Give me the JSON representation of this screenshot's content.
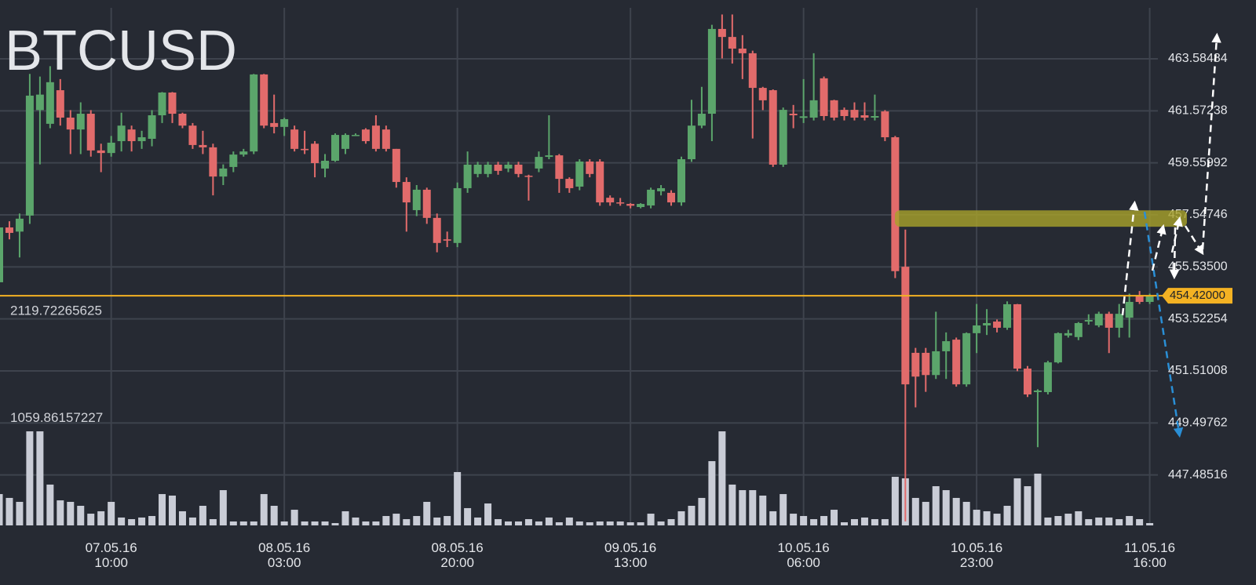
{
  "chart_data": {
    "type": "candlestick",
    "title": "BTCUSD",
    "categories": [
      null,
      null,
      null,
      null,
      null,
      null,
      null,
      null,
      null,
      null,
      null,
      "07.05.16\n10:00",
      null,
      null,
      null,
      null,
      null,
      null,
      null,
      null,
      null,
      null,
      null,
      null,
      null,
      null,
      null,
      null,
      "08.05.16\n03:00",
      null,
      null,
      null,
      null,
      null,
      null,
      null,
      null,
      null,
      null,
      null,
      null,
      null,
      null,
      null,
      null,
      "08.05.16\n20:00",
      null,
      null,
      null,
      null,
      null,
      null,
      null,
      null,
      null,
      null,
      null,
      null,
      null,
      null,
      null,
      null,
      "09.05.16\n13:00",
      null,
      null,
      null,
      null,
      null,
      null,
      null,
      null,
      null,
      null,
      null,
      null,
      null,
      null,
      null,
      null,
      "10.05.16\n06:00",
      null,
      null,
      null,
      null,
      null,
      null,
      null,
      null,
      null,
      null,
      null,
      null,
      null,
      null,
      null,
      null,
      "10.05.16\n23:00",
      null,
      null,
      null,
      null,
      null,
      null,
      null,
      null,
      null,
      null,
      null,
      null,
      null,
      null,
      null,
      null,
      "11.05.16\n16:00"
    ],
    "open": [
      454.94,
      457.06,
      456.9,
      457.52,
      461.6,
      461.07,
      462.37,
      461.31,
      460.85,
      461.46,
      460.04,
      459.94,
      460.4,
      460.85,
      460.4,
      460.49,
      461.4,
      462.28,
      461.46,
      461.0,
      460.25,
      460.16,
      459.03,
      459.4,
      459.88,
      460.0,
      462.98,
      461.1,
      460.95,
      460.85,
      460.1,
      460.3,
      459.34,
      459.64,
      460.1,
      460.64,
      460.85,
      461.0,
      460.85,
      460.1,
      458.82,
      457.73,
      458.52,
      457.43,
      456.6,
      456.46,
      458.58,
      459.13,
      459.13,
      459.49,
      459.34,
      459.49,
      459.06,
      459.34,
      459.79,
      459.85,
      458.94,
      458.64,
      459.61,
      459.61,
      458.21,
      458.03,
      457.97,
      457.85,
      457.91,
      458.46,
      458.4,
      458.03,
      459.7,
      461.0,
      461.46,
      464.74,
      464.43,
      463.98,
      463.8,
      462.46,
      462.37,
      459.49,
      461.46,
      461.3,
      461.31,
      462.83,
      461.98,
      461.61,
      461.61,
      461.4,
      461.31,
      461.55,
      460.55,
      455.54,
      452.21,
      452.21,
      451.35,
      452.27,
      452.72,
      450.99,
      452.97,
      453.27,
      453.42,
      453.18,
      454.09,
      451.6,
      450.69,
      450.69,
      451.84,
      452.88,
      452.82,
      453.42,
      453.27,
      453.72,
      453.18,
      453.57,
      454.42,
      454.18
    ],
    "high": [
      457.06,
      457.3,
      457.6,
      463.0,
      462.9,
      463.3,
      462.8,
      461.6,
      461.9,
      461.6,
      460.3,
      460.6,
      461.5,
      461.0,
      460.8,
      461.6,
      462.3,
      462.3,
      461.5,
      461.1,
      460.8,
      460.3,
      459.5,
      460.0,
      460.1,
      463.0,
      463.0,
      462.2,
      461.3,
      461.0,
      460.8,
      460.4,
      459.9,
      460.7,
      460.7,
      460.7,
      460.9,
      461.4,
      461.0,
      460.1,
      459.0,
      458.7,
      458.6,
      457.6,
      456.9,
      458.8,
      460.0,
      459.6,
      459.6,
      459.6,
      459.6,
      459.6,
      459.1,
      460.0,
      461.4,
      459.9,
      459.0,
      459.7,
      459.7,
      459.7,
      458.3,
      458.2,
      458.0,
      458.0,
      458.6,
      458.7,
      458.5,
      459.8,
      462.0,
      462.5,
      464.9,
      465.3,
      465.3,
      464.5,
      463.9,
      462.5,
      462.4,
      461.7,
      461.8,
      462.8,
      463.8,
      462.9,
      462.0,
      461.7,
      461.9,
      461.9,
      462.2,
      461.6,
      460.6,
      456.98,
      452.4,
      452.4,
      453.8,
      453.0,
      452.8,
      453.0,
      454.1,
      453.9,
      453.5,
      454.2,
      454.1,
      451.7,
      450.8,
      451.9,
      453.0,
      453.1,
      453.4,
      453.7,
      453.8,
      453.8,
      454.1,
      454.5,
      454.6,
      454.5
    ],
    "low": [
      454.94,
      456.6,
      455.9,
      457.2,
      459.5,
      460.9,
      461.0,
      459.9,
      459.9,
      459.8,
      459.2,
      459.8,
      460.0,
      460.0,
      460.1,
      460.2,
      461.1,
      461.1,
      460.9,
      460.1,
      459.9,
      458.3,
      458.7,
      459.2,
      459.8,
      459.9,
      460.9,
      460.7,
      460.6,
      460.0,
      459.9,
      459.0,
      459.0,
      459.6,
      459.9,
      460.64,
      460.3,
      460.0,
      460.0,
      458.6,
      456.9,
      457.5,
      457.2,
      456.1,
      456.3,
      456.3,
      458.4,
      459.0,
      459.0,
      459.1,
      459.2,
      459.0,
      458.1,
      459.2,
      459.7,
      458.4,
      458.4,
      458.5,
      459.0,
      457.9,
      457.9,
      457.9,
      457.8,
      457.8,
      457.8,
      458.3,
      457.9,
      457.9,
      459.6,
      460.9,
      460.4,
      463.6,
      463.4,
      462.8,
      460.5,
      461.6,
      459.4,
      459.4,
      460.9,
      461.1,
      461.2,
      461.2,
      461.2,
      461.2,
      461.2,
      461.2,
      461.2,
      460.4,
      455.1,
      445.69,
      450.1,
      450.7,
      451.2,
      451.2,
      450.9,
      450.9,
      452.2,
      452.9,
      453.0,
      453.1,
      451.5,
      450.5,
      448.56,
      450.6,
      451.8,
      452.8,
      452.7,
      453.3,
      453.2,
      452.2,
      452.8,
      452.8,
      454.1,
      454.1
    ],
    "close": [
      457.06,
      456.85,
      457.4,
      462.16,
      462.2,
      462.68,
      461.31,
      460.85,
      461.46,
      460.04,
      459.94,
      460.34,
      461.0,
      460.4,
      460.55,
      461.4,
      462.28,
      461.46,
      461.0,
      460.25,
      460.16,
      459.03,
      459.34,
      459.88,
      460.0,
      462.98,
      461.0,
      460.95,
      461.25,
      460.1,
      460.05,
      459.55,
      459.64,
      460.64,
      460.64,
      460.64,
      460.4,
      460.1,
      460.1,
      458.82,
      458.03,
      458.52,
      457.43,
      456.46,
      456.55,
      458.58,
      459.49,
      459.49,
      459.49,
      459.25,
      459.49,
      459.13,
      459.03,
      459.79,
      459.85,
      458.94,
      458.58,
      459.61,
      459.13,
      458.03,
      458.03,
      458.0,
      457.9,
      457.97,
      458.52,
      458.58,
      458.03,
      459.7,
      461.0,
      461.46,
      464.74,
      464.43,
      463.98,
      463.8,
      462.46,
      461.98,
      459.49,
      461.61,
      461.4,
      461.36,
      461.98,
      461.37,
      461.31,
      461.37,
      461.31,
      461.31,
      461.37,
      460.55,
      455.37,
      450.99,
      451.29,
      451.35,
      452.27,
      452.66,
      450.99,
      452.97,
      453.27,
      453.36,
      453.18,
      454.09,
      451.6,
      450.6,
      450.75,
      451.84,
      452.97,
      452.97,
      453.36,
      453.48,
      453.72,
      453.18,
      453.72,
      454.18,
      454.18,
      454.42
    ],
    "volume": [
      310,
      272,
      233,
      931,
      931,
      404,
      248,
      233,
      194,
      116,
      140,
      233,
      78,
      62,
      78,
      93,
      310,
      295,
      140,
      78,
      194,
      62,
      349,
      39,
      39,
      39,
      310,
      194,
      39,
      155,
      39,
      39,
      39,
      23,
      140,
      78,
      39,
      39,
      93,
      116,
      62,
      93,
      233,
      78,
      93,
      528,
      171,
      78,
      217,
      62,
      39,
      39,
      62,
      39,
      78,
      31,
      78,
      39,
      31,
      39,
      39,
      39,
      31,
      31,
      116,
      39,
      62,
      140,
      194,
      272,
      636,
      931,
      404,
      349,
      349,
      295,
      140,
      310,
      116,
      93,
      62,
      93,
      155,
      31,
      62,
      78,
      62,
      62,
      481,
      466,
      272,
      233,
      388,
      349,
      272,
      233,
      155,
      140,
      116,
      194,
      466,
      388,
      512,
      78,
      93,
      116,
      140,
      62,
      78,
      78,
      62,
      93,
      62,
      23
    ],
    "up_color": "#5ba56b",
    "down_color": "#e26b6b",
    "volume_color": "#c9ccd6",
    "ylim": [
      445.533,
      465.86
    ],
    "yticks": [
      463.58484,
      461.57238,
      459.55992,
      457.54746,
      {
        "value": 455.535,
        "label": "455.53500"
      },
      453.52254,
      451.51008,
      449.49762,
      447.48516
    ],
    "y2lim": [
      0,
      5200
    ],
    "y2ticks": [
      1059.86157227,
      2119.72265625
    ],
    "last_price": {
      "value": 454.42,
      "label": "454.42000"
    },
    "last_price_color": "#f4b223",
    "zone": [
      457.09,
      457.72
    ],
    "zone_color": "#a9a32b",
    "grid": true
  }
}
